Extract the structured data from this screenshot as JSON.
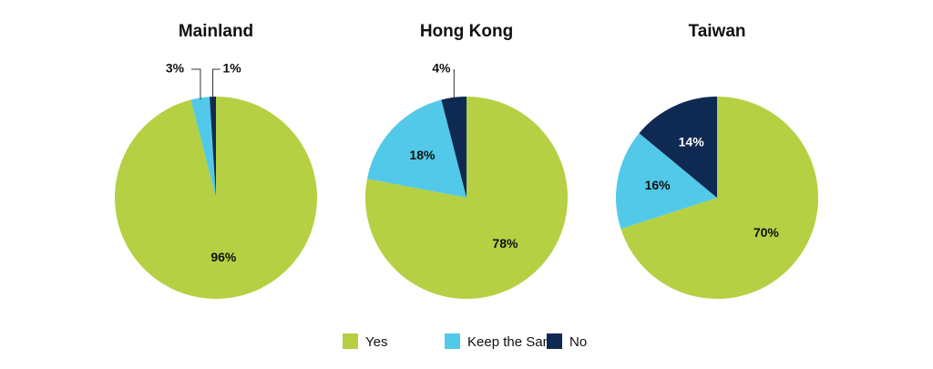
{
  "chart_data": [
    {
      "type": "pie",
      "title": "Mainland",
      "values": [
        96,
        3,
        1
      ],
      "value_labels": [
        "96%",
        "3%",
        "1%"
      ]
    },
    {
      "type": "pie",
      "title": "Hong Kong",
      "values": [
        78,
        18,
        4
      ],
      "value_labels": [
        "78%",
        "18%",
        "4%"
      ]
    },
    {
      "type": "pie",
      "title": "Taiwan",
      "values": [
        70,
        16,
        14
      ],
      "value_labels": [
        "70%",
        "16%",
        "14%"
      ]
    }
  ],
  "legend": {
    "labels": [
      "Yes",
      "Keep the Same",
      "No"
    ],
    "colors": [
      "#b5d043",
      "#52c9e8",
      "#0f2a52"
    ]
  }
}
